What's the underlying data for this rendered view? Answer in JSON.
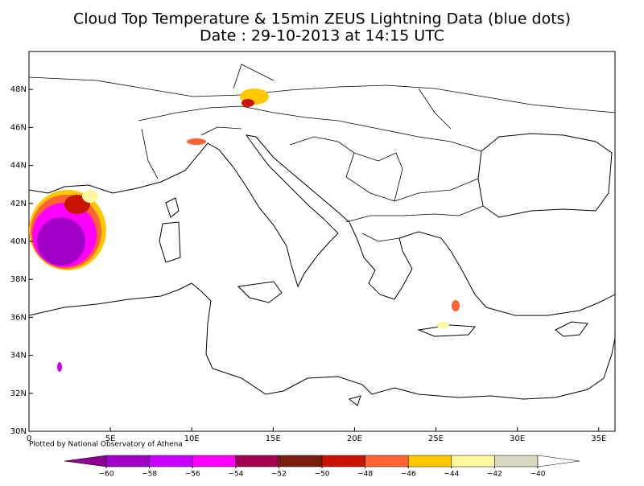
{
  "header": {
    "title": "Cloud Top Temperature & 15min ZEUS Lightning Data (blue dots)",
    "subtitle": "Date : 29-10-2013 at 14:15 UTC"
  },
  "map": {
    "xlim": [
      0,
      36
    ],
    "ylim": [
      30,
      50
    ],
    "xticks": [
      {
        "value": 0,
        "label": "0"
      },
      {
        "value": 5,
        "label": "5E"
      },
      {
        "value": 10,
        "label": "10E"
      },
      {
        "value": 15,
        "label": "15E"
      },
      {
        "value": 20,
        "label": "20E"
      },
      {
        "value": 25,
        "label": "25E"
      },
      {
        "value": 30,
        "label": "30E"
      },
      {
        "value": 35,
        "label": "35E"
      }
    ],
    "yticks": [
      {
        "value": 30,
        "label": "30N"
      },
      {
        "value": 32,
        "label": "32N"
      },
      {
        "value": 34,
        "label": "34N"
      },
      {
        "value": 36,
        "label": "36N"
      },
      {
        "value": 38,
        "label": "38N"
      },
      {
        "value": 40,
        "label": "40N"
      },
      {
        "value": 42,
        "label": "42N"
      },
      {
        "value": 44,
        "label": "44N"
      },
      {
        "value": 46,
        "label": "46N"
      },
      {
        "value": 48,
        "label": "48N"
      }
    ],
    "credit": "Plotted by National Observatory of Athena"
  },
  "colorbar": {
    "colors": [
      "#8c0090",
      "#a000c8",
      "#c800ff",
      "#ff00ff",
      "#a0004f",
      "#7a1e10",
      "#c81400",
      "#ff6432",
      "#ffc800",
      "#fff8a0",
      "#d8d8c0",
      "#ffffff"
    ],
    "ticks": [
      {
        "value": -60,
        "label": "−60"
      },
      {
        "value": -58,
        "label": "−58"
      },
      {
        "value": -56,
        "label": "−56"
      },
      {
        "value": -54,
        "label": "−54"
      },
      {
        "value": -52,
        "label": "−52"
      },
      {
        "value": -50,
        "label": "−50"
      },
      {
        "value": -48,
        "label": "−48"
      },
      {
        "value": -46,
        "label": "−46"
      },
      {
        "value": -44,
        "label": "−44"
      },
      {
        "value": -42,
        "label": "−42"
      },
      {
        "value": -40,
        "label": "−40"
      }
    ]
  }
}
